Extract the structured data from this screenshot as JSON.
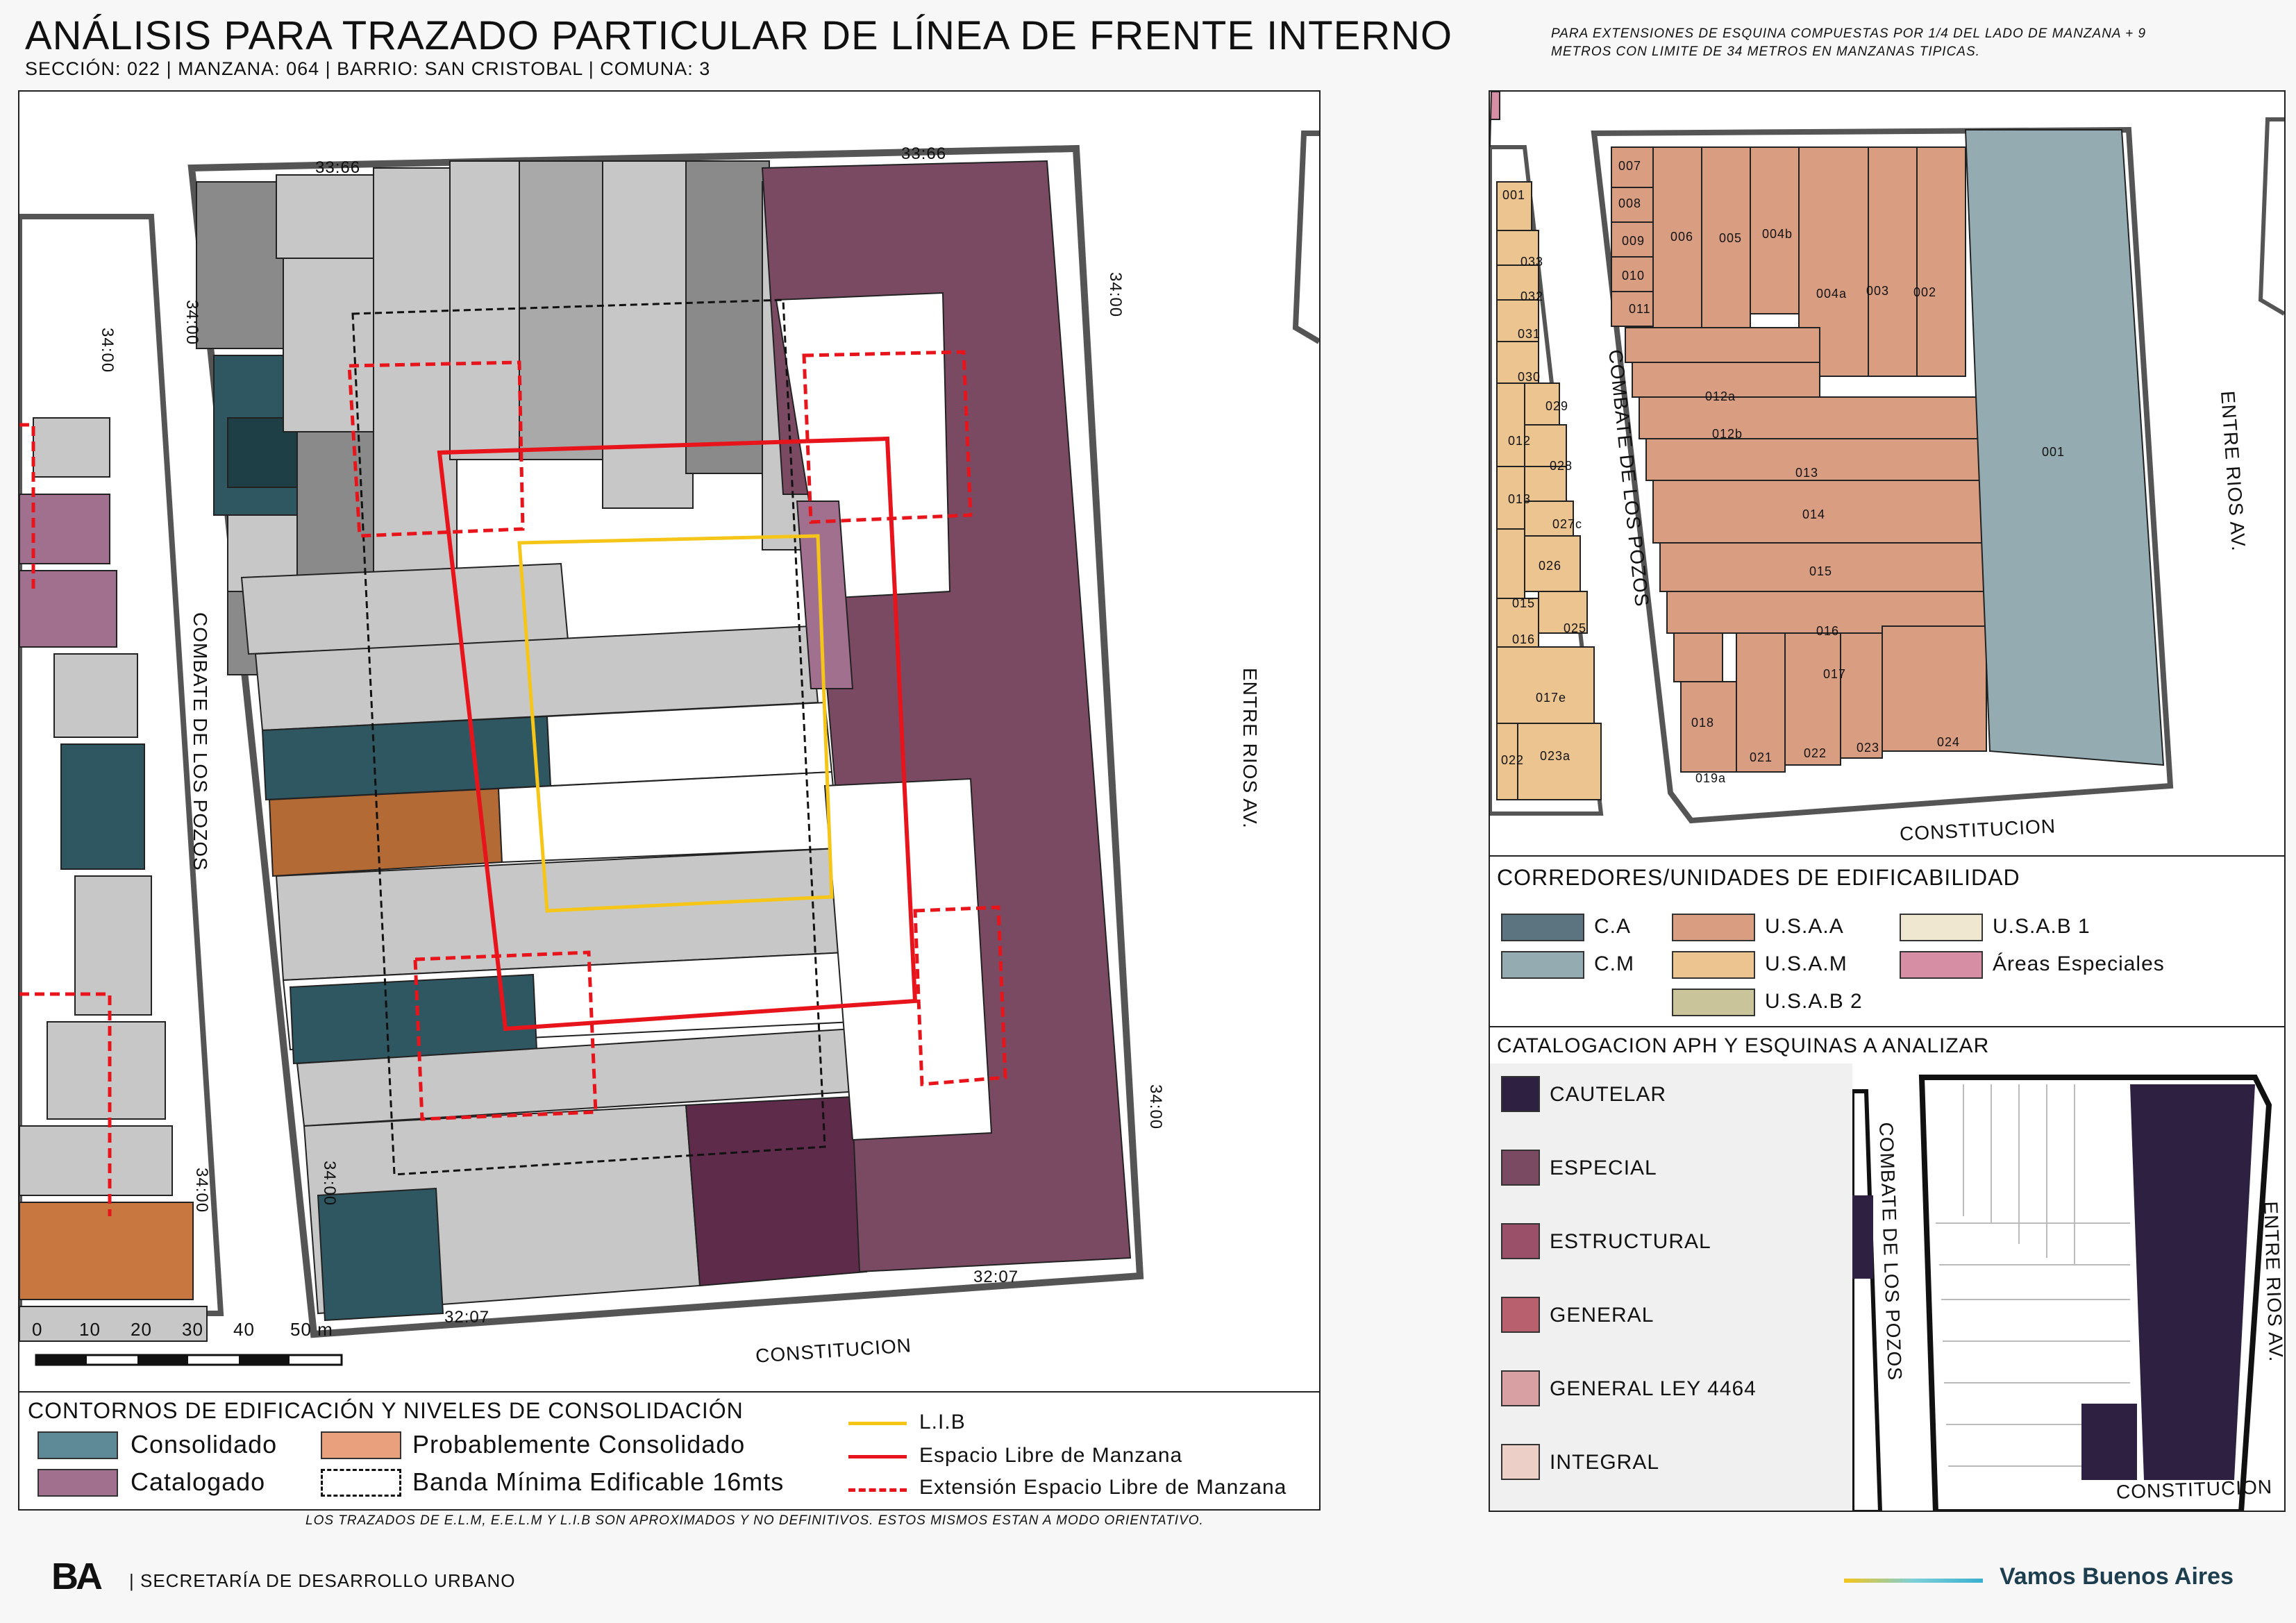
{
  "header": {
    "title": "ANÁLISIS PARA TRAZADO PARTICULAR DE LÍNEA DE FRENTE INTERNO",
    "subtitle": "SECCIÓN: 022 |  MANZANA: 064 | BARRIO: SAN CRISTOBAL | COMUNA: 3",
    "note_line1": "PARA EXTENSIONES DE ESQUINA COMPUESTAS POR 1/4 DEL LADO DE MANZANA + 9",
    "note_line2": "METROS CON LIMITE DE 34 METROS EN MANZANAS TIPICAS."
  },
  "main_map": {
    "streets": {
      "west": "COMBATE DE LOS POZOS",
      "east": "ENTRE RIOS AV.",
      "south": "CONSTITUCION"
    },
    "dimensions": {
      "top_left": "33:66",
      "top_right": "33:66",
      "west_upper": "34:00",
      "east_upper": "34:00",
      "east_lower": "34:00",
      "west_lower": "34:00",
      "bottom_right": "32:07",
      "bottom_left": "32:07",
      "left_block": "34:00",
      "left_block_lower": "34:00"
    },
    "scale": {
      "labels": [
        "0",
        "10",
        "20",
        "30",
        "40",
        "50 m"
      ]
    }
  },
  "bottom_legend": {
    "title": "CONTORNOS DE EDIFICACIÓN Y NIVELES DE CONSOLIDACIÓN",
    "items": [
      {
        "label": "Consolidado",
        "color": "#5e8a97"
      },
      {
        "label": "Probablemente Consolidado",
        "color": "#e9a07c"
      },
      {
        "label": "Catalogado",
        "color": "#a1708f"
      },
      {
        "label": "Banda Mínima Edificable 16mts",
        "color": "#ffffff"
      }
    ],
    "lines": [
      {
        "label": "L.I.B",
        "color": "#f5c518"
      },
      {
        "label": "Espacio Libre de Manzana",
        "color": "#e8141c"
      },
      {
        "label": "Extensión Espacio Libre de Manzana",
        "color": "#e8141c"
      }
    ]
  },
  "parcel_map": {
    "street_west": "COMBATE DE LOS POZOS",
    "street_east": "ENTRE RIOS AV.",
    "street_south": "CONSTITUCION",
    "left_parcels": [
      "001",
      "033",
      "032",
      "031",
      "030",
      "029",
      "012",
      "028",
      "013",
      "027c",
      "026",
      "015",
      "025",
      "016",
      "017e",
      "022",
      "023a"
    ],
    "parcels": [
      "007",
      "008",
      "009",
      "006",
      "005",
      "004b",
      "010",
      "004a",
      "003",
      "002",
      "011",
      "012a",
      "012b",
      "001",
      "013",
      "014",
      "015",
      "016",
      "017",
      "018",
      "021",
      "022",
      "023",
      "024",
      "019a"
    ]
  },
  "corredores": {
    "title": "CORREDORES/UNIDADES DE EDIFICABILIDAD",
    "items": [
      {
        "label": "C.A",
        "color": "#5c7480"
      },
      {
        "label": "U.S.A.A",
        "color": "#d99e82"
      },
      {
        "label": "U.S.A.B 1",
        "color": "#efe7cf"
      },
      {
        "label": "C.M",
        "color": "#93abb1"
      },
      {
        "label": "U.S.A.M",
        "color": "#ebc48f"
      },
      {
        "label": "Áreas Especiales",
        "color": "#d58ea4"
      },
      {
        "label": "U.S.A.B 2",
        "color": "#c9c49a"
      }
    ]
  },
  "catalogacion": {
    "title": "CATALOGACION APH Y ESQUINAS A ANALIZAR",
    "items": [
      {
        "label": "CAUTELAR",
        "color": "#2e2040"
      },
      {
        "label": "ESPECIAL",
        "color": "#7a4a63"
      },
      {
        "label": "ESTRUCTURAL",
        "color": "#9a5068"
      },
      {
        "label": "GENERAL",
        "color": "#b9606e"
      },
      {
        "label": "GENERAL LEY 4464",
        "color": "#d9a0a4"
      },
      {
        "label": "INTEGRAL",
        "color": "#ecd0c8"
      }
    ],
    "street_west": "COMBATE DE LOS POZOS",
    "street_east": "ENTRE RIOS AV.",
    "street_south": "CONSTITUCION"
  },
  "footer": {
    "note": "LOS TRAZADOS DE E.L.M, E.E.L.M Y L.I.B SON APROXIMADOS Y NO DEFINITIVOS. ESTOS MISMOS ESTAN A MODO ORIENTATIVO.",
    "org": "| SECRETARÍA DE DESARROLLO URBANO",
    "logo": "BA",
    "brand": "Vamos Buenos Aires"
  }
}
